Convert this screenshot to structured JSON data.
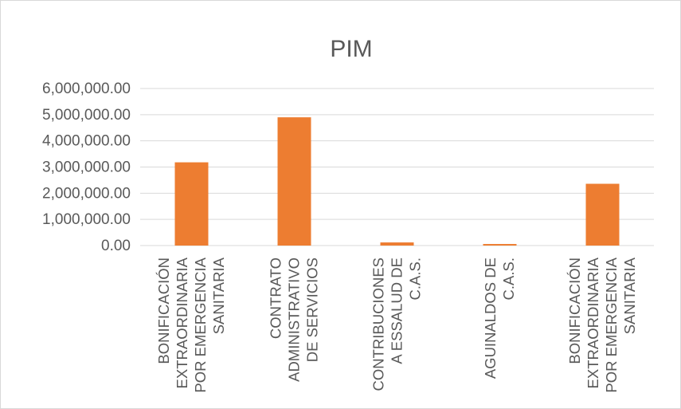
{
  "chart_data": {
    "type": "bar",
    "title": "PIM",
    "xlabel": "",
    "ylabel": "",
    "ylim": [
      0,
      6000000
    ],
    "yticks": [
      0,
      1000000,
      2000000,
      3000000,
      4000000,
      5000000,
      6000000
    ],
    "ytick_labels": [
      "0.00",
      "1,000,000.00",
      "2,000,000.00",
      "3,000,000.00",
      "4,000,000.00",
      "5,000,000.00",
      "6,000,000.00"
    ],
    "grid": true,
    "legend": "none",
    "categories": [
      [
        "BONIFICACIÓN",
        "EXTRAORDINARIA",
        "POR EMERGENCIA",
        "SANITARIA"
      ],
      [
        "CONTRATO",
        "ADMINISTRATIVO",
        "DE SERVICIOS"
      ],
      [
        "CONTRIBUCIONES",
        "A ESSALUD DE",
        "C.A.S."
      ],
      [
        "AGUINALDOS DE",
        "C.A.S."
      ],
      [
        "BONIFICACIÓN",
        "EXTRAORDINARIA",
        "POR EMERGENCIA",
        "SANITARIA"
      ]
    ],
    "values": [
      3180000,
      4900000,
      120000,
      60000,
      2360000
    ],
    "bar_color": "#ED7D31"
  }
}
